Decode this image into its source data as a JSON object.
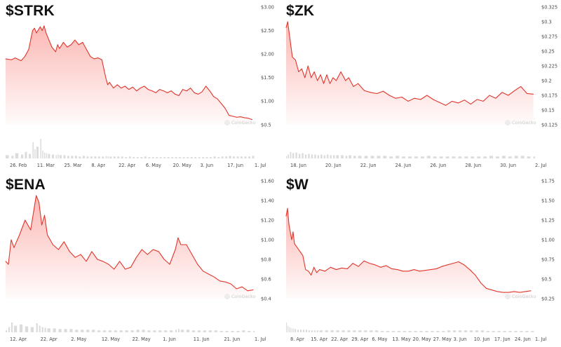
{
  "colors": {
    "line": "#e0362c",
    "fill_top": "#fbb4b0",
    "volume": "#dcdcdc",
    "watermark": "#d0d0d0"
  },
  "watermark": "CoinGecko",
  "chart_data": [
    {
      "type": "area",
      "title": "$STRK",
      "x_tick_labels": [
        "26. Feb",
        "11. Mar",
        "25. Mar",
        "8. Apr",
        "22. Apr",
        "6. May",
        "20. May",
        "3. Jun",
        "17. Jun",
        "1. Jul"
      ],
      "y_tick_labels": [
        "$3.00",
        "$2.50",
        "$2.00",
        "$1.50",
        "$1.00",
        "$0.5"
      ],
      "y_ticks": [
        3.0,
        2.5,
        2.0,
        1.5,
        1.0,
        0.5
      ],
      "ylim": [
        0.5,
        3.0
      ],
      "x_range": [
        0,
        130
      ],
      "x": [
        0,
        3,
        5,
        8,
        10,
        12,
        14,
        15,
        16,
        18,
        19,
        20,
        21,
        22,
        24,
        26,
        27,
        28,
        30,
        32,
        34,
        36,
        38,
        40,
        42,
        44,
        46,
        48,
        50,
        52,
        53,
        54,
        56,
        58,
        60,
        62,
        64,
        66,
        68,
        70,
        72,
        74,
        76,
        78,
        80,
        82,
        84,
        86,
        88,
        90,
        92,
        94,
        96,
        98,
        100,
        102,
        104,
        106,
        108,
        110,
        112,
        114,
        116,
        118,
        120,
        122,
        124,
        126,
        128
      ],
      "values": [
        1.9,
        1.88,
        1.92,
        1.86,
        1.95,
        2.1,
        2.5,
        2.55,
        2.45,
        2.58,
        2.5,
        2.6,
        2.45,
        2.35,
        2.15,
        2.05,
        2.2,
        2.12,
        2.25,
        2.15,
        2.2,
        2.3,
        2.2,
        2.25,
        2.1,
        1.95,
        1.9,
        1.92,
        1.88,
        1.5,
        1.35,
        1.4,
        1.28,
        1.35,
        1.28,
        1.32,
        1.25,
        1.3,
        1.22,
        1.28,
        1.32,
        1.25,
        1.22,
        1.18,
        1.25,
        1.22,
        1.18,
        1.22,
        1.15,
        1.12,
        1.25,
        1.22,
        1.28,
        1.18,
        1.15,
        1.2,
        1.32,
        1.22,
        1.1,
        1.05,
        0.95,
        0.85,
        0.7,
        0.68,
        0.66,
        0.67,
        0.65,
        0.64,
        0.61
      ],
      "volume": [
        5,
        4,
        8,
        6,
        10,
        7,
        25,
        14,
        18,
        30,
        12,
        9,
        8,
        7,
        6,
        5,
        6,
        5,
        5,
        4,
        4,
        4,
        3,
        4,
        3,
        3,
        3,
        3,
        3,
        4,
        3,
        3,
        3,
        3,
        3,
        2,
        3,
        2,
        2,
        2,
        3,
        2,
        2,
        2,
        2,
        2,
        2,
        2,
        2,
        2,
        2,
        2,
        2,
        2,
        2,
        2,
        2,
        2,
        3,
        2,
        3,
        3,
        4,
        3,
        3,
        3,
        3,
        3,
        4
      ]
    },
    {
      "type": "area",
      "title": "$ZK",
      "x_tick_labels": [
        "18. Jun",
        "20. Jun",
        "22. Jun",
        "24. Jun",
        "26. Jun",
        "28. Jun",
        "30. Jun",
        "2. Jul"
      ],
      "y_tick_labels": [
        "$0.325",
        "$0.3",
        "$0.275",
        "$0.25",
        "$0.225",
        "$0.2",
        "$0.175",
        "$0.15",
        "$0.125"
      ],
      "y_ticks": [
        0.325,
        0.3,
        0.275,
        0.25,
        0.225,
        0.2,
        0.175,
        0.15,
        0.125
      ],
      "ylim": [
        0.125,
        0.325
      ],
      "x_range": [
        0,
        16
      ],
      "x": [
        0,
        0.1,
        0.25,
        0.4,
        0.6,
        0.8,
        1.0,
        1.2,
        1.4,
        1.6,
        1.8,
        2.0,
        2.2,
        2.4,
        2.6,
        2.8,
        3.0,
        3.2,
        3.5,
        3.8,
        4.0,
        4.3,
        4.6,
        5.0,
        5.4,
        5.8,
        6.2,
        6.6,
        7.0,
        7.4,
        7.8,
        8.2,
        8.6,
        9.0,
        9.4,
        9.8,
        10.2,
        10.6,
        11.0,
        11.4,
        11.8,
        12.2,
        12.6,
        13.0,
        13.4,
        13.8,
        14.2,
        14.6,
        15.0,
        15.4,
        15.8
      ],
      "values": [
        0.29,
        0.3,
        0.27,
        0.24,
        0.235,
        0.215,
        0.22,
        0.205,
        0.225,
        0.205,
        0.215,
        0.2,
        0.21,
        0.195,
        0.21,
        0.195,
        0.205,
        0.2,
        0.215,
        0.2,
        0.205,
        0.19,
        0.195,
        0.183,
        0.18,
        0.178,
        0.182,
        0.175,
        0.17,
        0.172,
        0.165,
        0.17,
        0.168,
        0.175,
        0.168,
        0.163,
        0.158,
        0.165,
        0.162,
        0.167,
        0.16,
        0.168,
        0.165,
        0.175,
        0.17,
        0.18,
        0.175,
        0.183,
        0.19,
        0.178,
        0.177
      ],
      "volume": [
        4,
        6,
        10,
        8,
        9,
        7,
        8,
        6,
        7,
        6,
        6,
        5,
        6,
        5,
        6,
        5,
        5,
        5,
        5,
        4,
        5,
        4,
        4,
        4,
        4,
        4,
        4,
        3,
        4,
        3,
        3,
        3,
        3,
        4,
        3,
        3,
        3,
        3,
        3,
        3,
        3,
        3,
        3,
        4,
        3,
        4,
        3,
        4,
        4,
        3,
        3
      ]
    },
    {
      "type": "area",
      "title": "$ENA",
      "x_tick_labels": [
        "12. Apr",
        "22. Apr",
        "2. May",
        "12. May",
        "22. May",
        "1. Jun",
        "11. Jun",
        "21. Jun",
        "1. Jul"
      ],
      "y_tick_labels": [
        "$1.60",
        "$1.40",
        "$1.20",
        "$1.00",
        "$0.8",
        "$0.6",
        "$0.4"
      ],
      "y_ticks": [
        1.6,
        1.4,
        1.2,
        1.0,
        0.8,
        0.6,
        0.4
      ],
      "ylim": [
        0.4,
        1.6
      ],
      "x_range": [
        0,
        90
      ],
      "x": [
        0,
        1,
        2,
        3,
        5,
        7,
        9,
        11,
        12,
        13,
        14,
        15,
        17,
        19,
        21,
        23,
        25,
        27,
        29,
        31,
        33,
        35,
        37,
        39,
        41,
        43,
        45,
        47,
        49,
        51,
        53,
        55,
        57,
        59,
        61,
        62,
        63,
        65,
        67,
        69,
        71,
        73,
        75,
        77,
        79,
        81,
        83,
        85,
        87,
        89
      ],
      "values": [
        0.78,
        0.75,
        1.0,
        0.92,
        1.05,
        1.2,
        1.1,
        1.45,
        1.38,
        1.15,
        1.25,
        1.05,
        0.95,
        0.9,
        0.98,
        0.88,
        0.82,
        0.85,
        0.78,
        0.88,
        0.8,
        0.78,
        0.75,
        0.7,
        0.78,
        0.7,
        0.72,
        0.82,
        0.9,
        0.85,
        0.9,
        0.88,
        0.8,
        0.75,
        0.9,
        1.02,
        0.95,
        0.95,
        0.85,
        0.75,
        0.68,
        0.65,
        0.62,
        0.58,
        0.57,
        0.55,
        0.5,
        0.52,
        0.48,
        0.49
      ],
      "volume": [
        3,
        8,
        15,
        10,
        12,
        9,
        8,
        14,
        10,
        8,
        7,
        6,
        6,
        5,
        5,
        5,
        4,
        4,
        4,
        4,
        3,
        3,
        3,
        3,
        3,
        3,
        3,
        4,
        4,
        3,
        3,
        3,
        3,
        3,
        4,
        5,
        4,
        4,
        3,
        3,
        3,
        3,
        3,
        2,
        2,
        2,
        2,
        3,
        2,
        2
      ]
    },
    {
      "type": "area",
      "title": "$W",
      "x_tick_labels": [
        "8. Apr",
        "15. Apr",
        "22. Apr",
        "29. Apr",
        "6. May",
        "13. May",
        "20. May",
        "27. May",
        "3. Jun",
        "10. Jun",
        "17. Jun",
        "24. Jun",
        "1. Jul"
      ],
      "y_tick_labels": [
        "$1.75",
        "$1.50",
        "$1.25",
        "$1.00",
        "$0.75",
        "$0.5",
        "$0.25"
      ],
      "y_ticks": [
        1.75,
        1.5,
        1.25,
        1.0,
        0.75,
        0.5,
        0.25
      ],
      "ylim": [
        0.25,
        1.75
      ],
      "x_range": [
        0,
        90
      ],
      "x": [
        0,
        0.5,
        1,
        1.5,
        2,
        2.5,
        3,
        4,
        5,
        6,
        7,
        8,
        9,
        10,
        11,
        12,
        14,
        16,
        18,
        20,
        22,
        24,
        26,
        28,
        30,
        32,
        34,
        36,
        38,
        40,
        42,
        44,
        46,
        48,
        50,
        52,
        54,
        56,
        58,
        60,
        62,
        64,
        66,
        68,
        70,
        72,
        74,
        76,
        78,
        80,
        82,
        84,
        86,
        88
      ],
      "values": [
        1.3,
        1.4,
        1.2,
        1.1,
        1.0,
        1.1,
        0.95,
        0.9,
        0.85,
        0.8,
        0.62,
        0.6,
        0.55,
        0.65,
        0.58,
        0.62,
        0.6,
        0.65,
        0.62,
        0.64,
        0.63,
        0.7,
        0.66,
        0.73,
        0.7,
        0.68,
        0.65,
        0.67,
        0.63,
        0.62,
        0.6,
        0.6,
        0.62,
        0.6,
        0.61,
        0.62,
        0.63,
        0.66,
        0.68,
        0.7,
        0.72,
        0.68,
        0.62,
        0.55,
        0.45,
        0.38,
        0.36,
        0.34,
        0.33,
        0.33,
        0.34,
        0.33,
        0.34,
        0.35
      ],
      "volume": [
        15,
        10,
        8,
        7,
        6,
        5,
        5,
        4,
        4,
        4,
        4,
        3,
        3,
        3,
        3,
        3,
        3,
        3,
        3,
        3,
        3,
        3,
        3,
        3,
        3,
        3,
        2,
        2,
        2,
        2,
        2,
        2,
        2,
        2,
        2,
        2,
        2,
        2,
        3,
        3,
        3,
        3,
        3,
        3,
        3,
        2,
        2,
        2,
        2,
        2,
        2,
        2,
        2,
        2
      ]
    }
  ]
}
